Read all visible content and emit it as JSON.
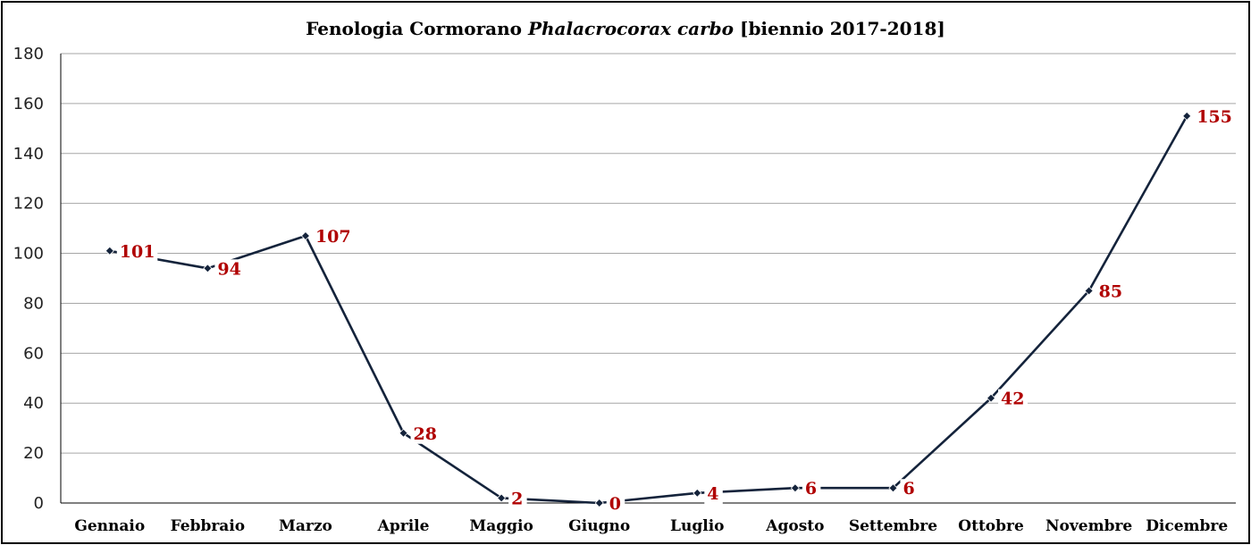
{
  "chart_data": {
    "type": "line",
    "title": {
      "prefix": "Fenologia Cormorano ",
      "species": "Phalacrocorax carbo",
      "suffix": " [biennio 2017-2018]"
    },
    "categories": [
      "Gennaio",
      "Febbraio",
      "Marzo",
      "Aprile",
      "Maggio",
      "Giugno",
      "Luglio",
      "Agosto",
      "Settembre",
      "Ottobre",
      "Novembre",
      "Dicembre"
    ],
    "series": [
      {
        "values": [
          101,
          94,
          107,
          28,
          2,
          0,
          4,
          6,
          6,
          42,
          85,
          155
        ]
      }
    ],
    "ylim": [
      0,
      180
    ],
    "yticks": [
      0,
      20,
      40,
      60,
      80,
      100,
      120,
      140,
      160,
      180
    ],
    "grid": true,
    "legend": "none",
    "colors": {
      "line": "#14233b",
      "data_labels": "#b00000",
      "grid": "#a6a6a6"
    }
  }
}
